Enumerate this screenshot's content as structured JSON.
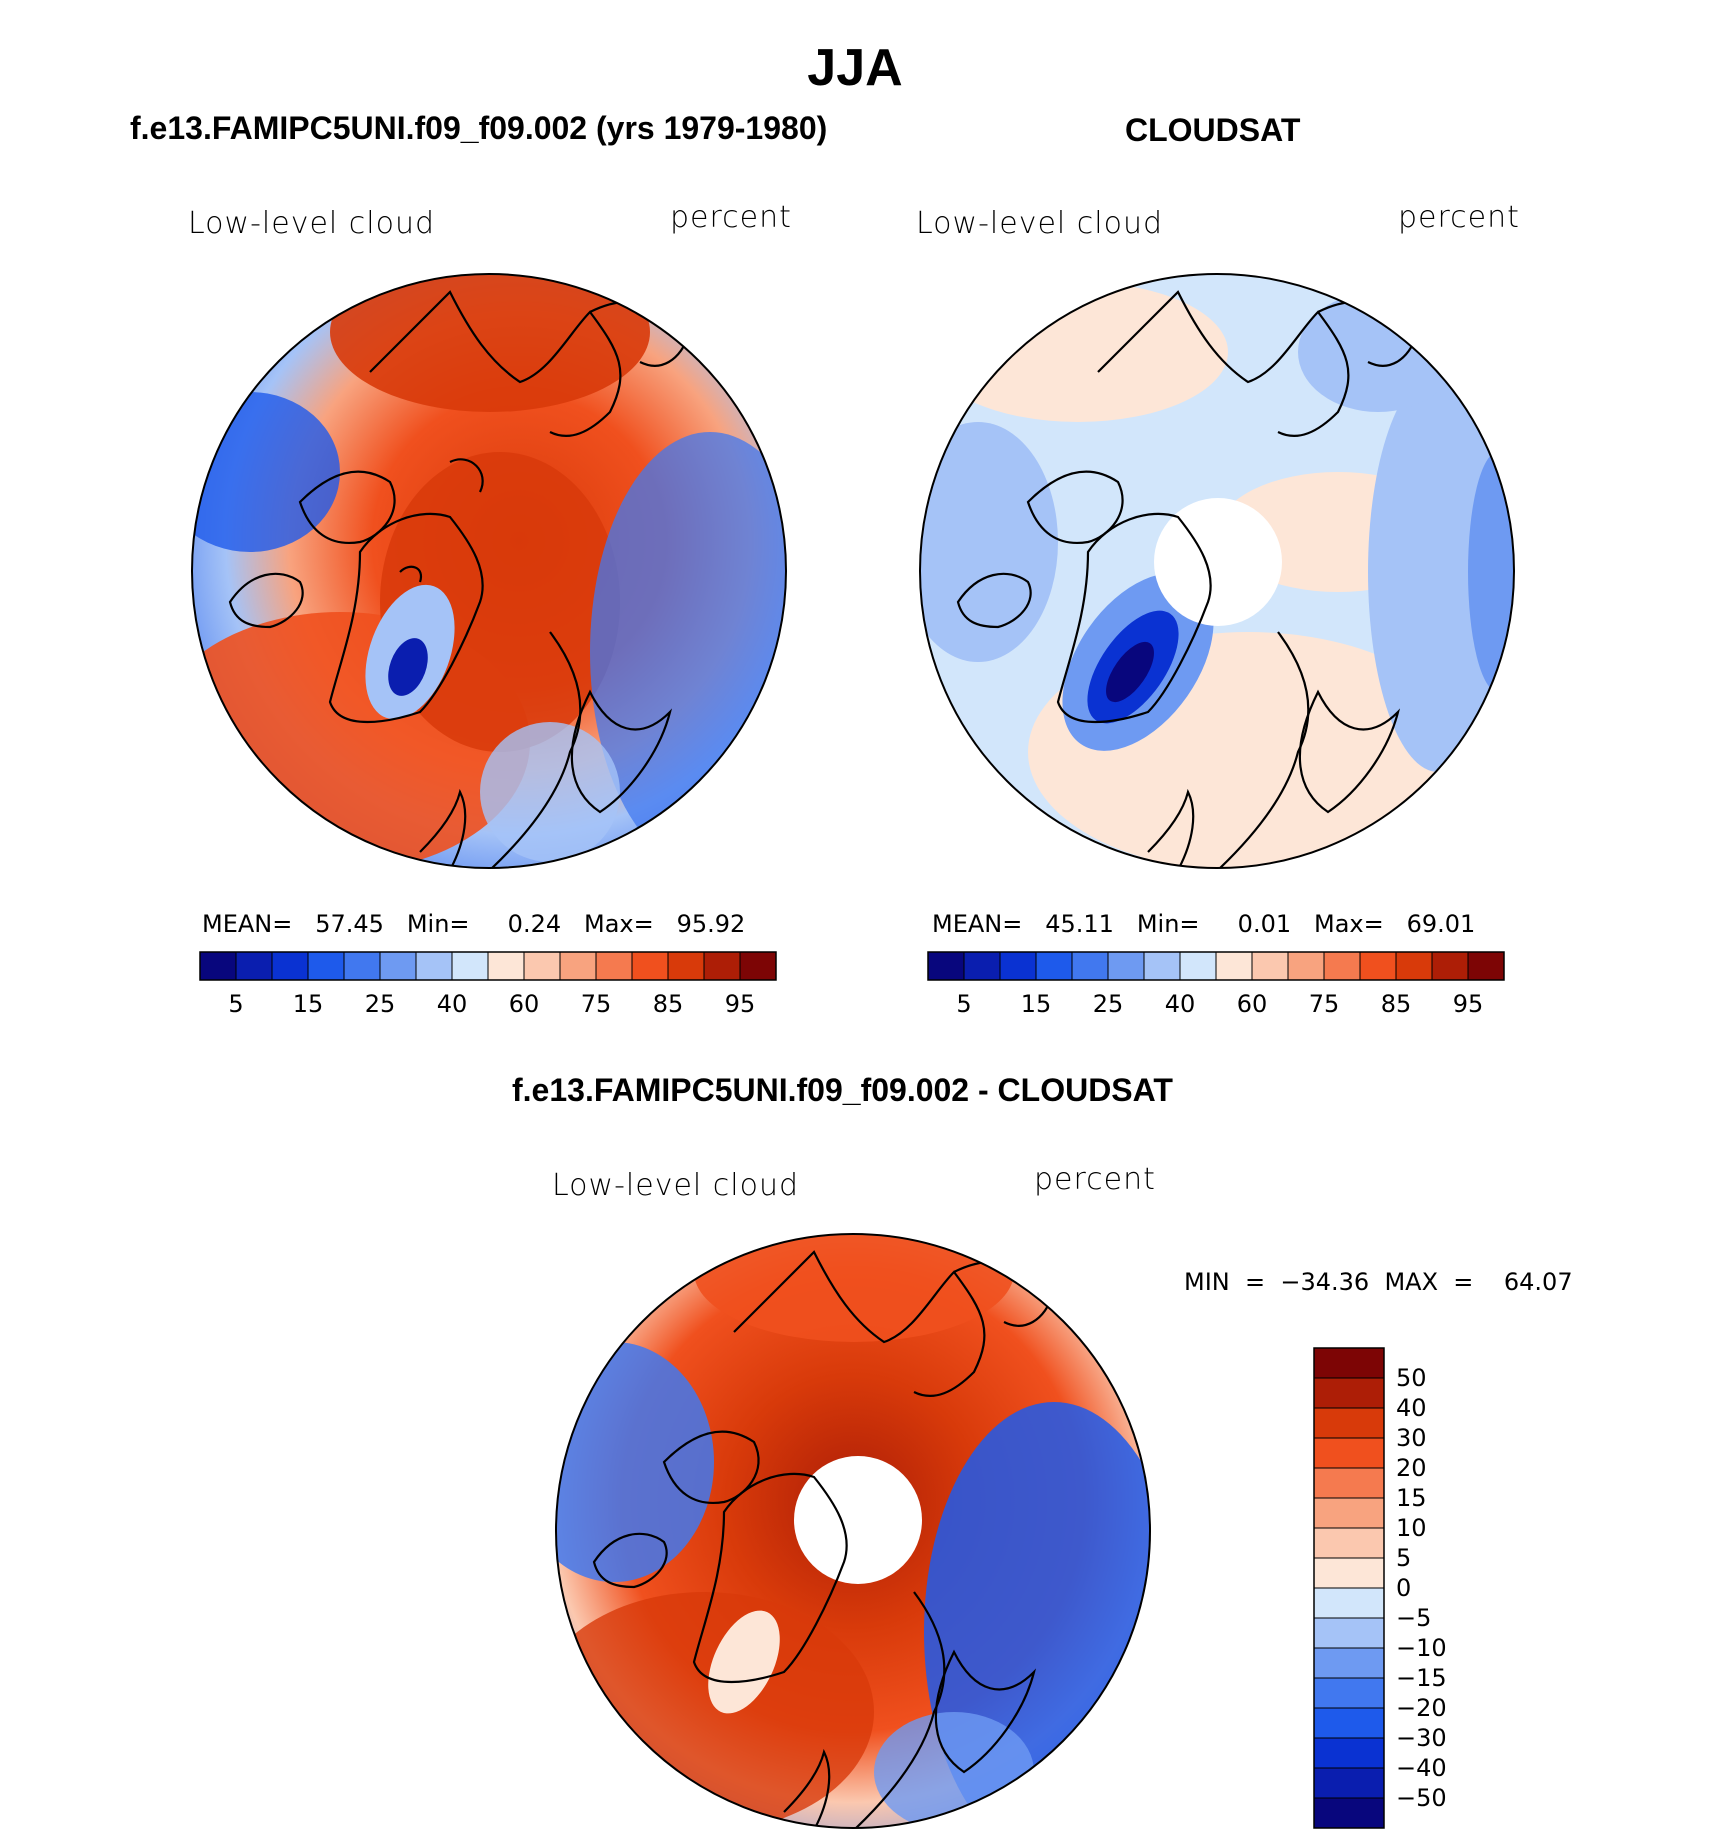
{
  "title": "JJA",
  "panels": [
    {
      "id": "model",
      "title": "f.e13.FAMIPC5UNI.f09_f09.002 (yrs 1979-1980)",
      "variable": "Low-level cloud",
      "units": "percent",
      "stats_text": "MEAN=   57.45   Min=     0.24   Max=   95.92",
      "mean": 57.45,
      "min": 0.24,
      "max": 95.92,
      "colorbar_ticks": [
        "5",
        "15",
        "25",
        "40",
        "60",
        "75",
        "85",
        "95"
      ]
    },
    {
      "id": "obs",
      "title": "CLOUDSAT",
      "variable": "Low-level cloud",
      "units": "percent",
      "stats_text": "MEAN=   45.11   Min=     0.01   Max=   69.01",
      "mean": 45.11,
      "min": 0.01,
      "max": 69.01,
      "colorbar_ticks": [
        "5",
        "15",
        "25",
        "40",
        "60",
        "75",
        "85",
        "95"
      ]
    },
    {
      "id": "diff",
      "title": "f.e13.FAMIPC5UNI.f09_f09.002 - CLOUDSAT",
      "variable": "Low-level cloud",
      "units": "percent",
      "stats_text": "MIN  =  −34.36  MAX  =    64.07",
      "min": -34.36,
      "max": 64.07,
      "colorbar_ticks": [
        "50",
        "40",
        "30",
        "20",
        "15",
        "10",
        "5",
        "0",
        "−5",
        "−10",
        "−15",
        "−20",
        "−30",
        "−40",
        "−50"
      ]
    }
  ],
  "colors": {
    "abs_scale": [
      "#08067d",
      "#0a1eaf",
      "#0a32d2",
      "#1e5aeb",
      "#4178ef",
      "#6e9af2",
      "#a5c3f7",
      "#d2e6fb",
      "#fde6d7",
      "#fbc8af",
      "#f8a37f",
      "#f57a4f",
      "#f0501e",
      "#d83a0a",
      "#ad1e06",
      "#7d0505"
    ],
    "diff_scale": [
      "#7d0505",
      "#ad1e06",
      "#d83a0a",
      "#f0501e",
      "#f57a4f",
      "#f8a37f",
      "#fbc8af",
      "#fde6d7",
      "#d2e6fb",
      "#a5c3f7",
      "#6e9af2",
      "#4178ef",
      "#1e5aeb",
      "#0a32d2",
      "#0a1eaf",
      "#08067d"
    ]
  }
}
